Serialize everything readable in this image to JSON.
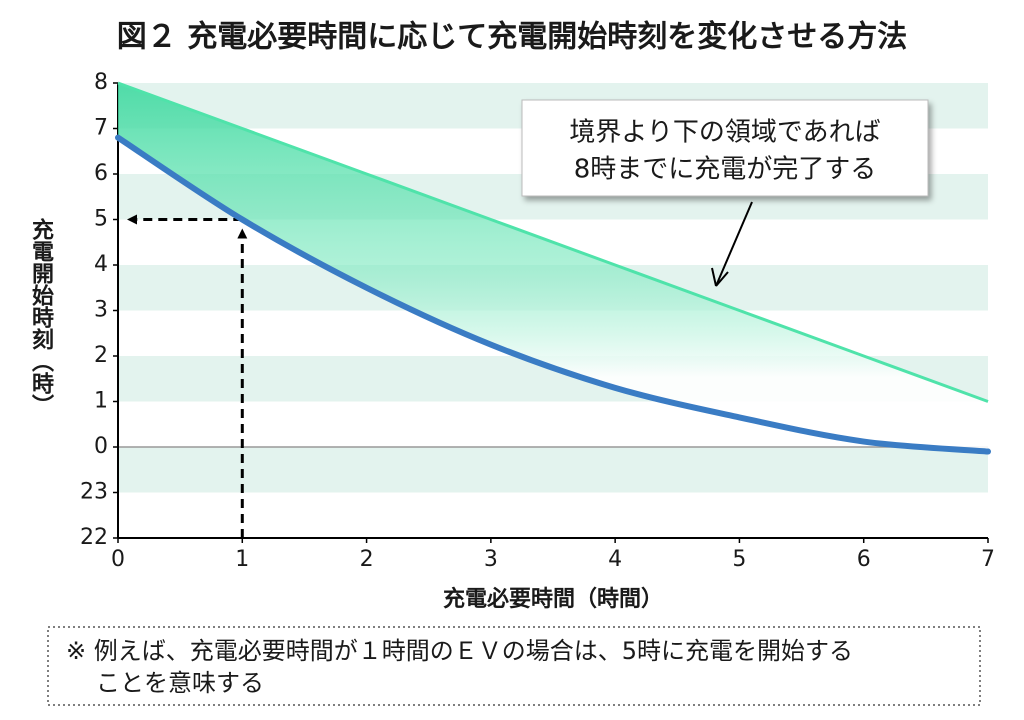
{
  "chart_data": {
    "type": "line",
    "title": "図２ 充電必要時間に応じて充電開始時刻を変化させる方法",
    "xlabel": "充電必要時間（時間）",
    "ylabel": "充電開始時刻（時）",
    "x": [
      0,
      1,
      2,
      3,
      4,
      5,
      6,
      7
    ],
    "series": [
      {
        "color": "#4fe3aa",
        "values": [
          8,
          7,
          6,
          5,
          4,
          3,
          2,
          1
        ]
      },
      {
        "color": "#3a7cc4",
        "values": [
          6.8,
          5.0,
          3.5,
          2.25,
          1.3,
          0.65,
          0.12,
          -0.1
        ]
      }
    ],
    "xlim": [
      0,
      7
    ],
    "xticks": [
      0,
      1,
      2,
      3,
      4,
      5,
      6,
      7
    ],
    "ylim": [
      -2,
      8
    ],
    "yticks": [
      8,
      7,
      6,
      5,
      4,
      3,
      2,
      1,
      0,
      {
        "value": -1,
        "label": "23"
      },
      {
        "value": -2,
        "label": "22"
      }
    ],
    "guide": {
      "x": 1,
      "y": 5
    },
    "callout": [
      "境界より下の領域であれば",
      "8時までに充電が完了する"
    ],
    "note": [
      "※ 例えば、充電必要時間が１時間のＥＶの場合は、5時に充電を開始する",
      "ことを意味する"
    ]
  }
}
